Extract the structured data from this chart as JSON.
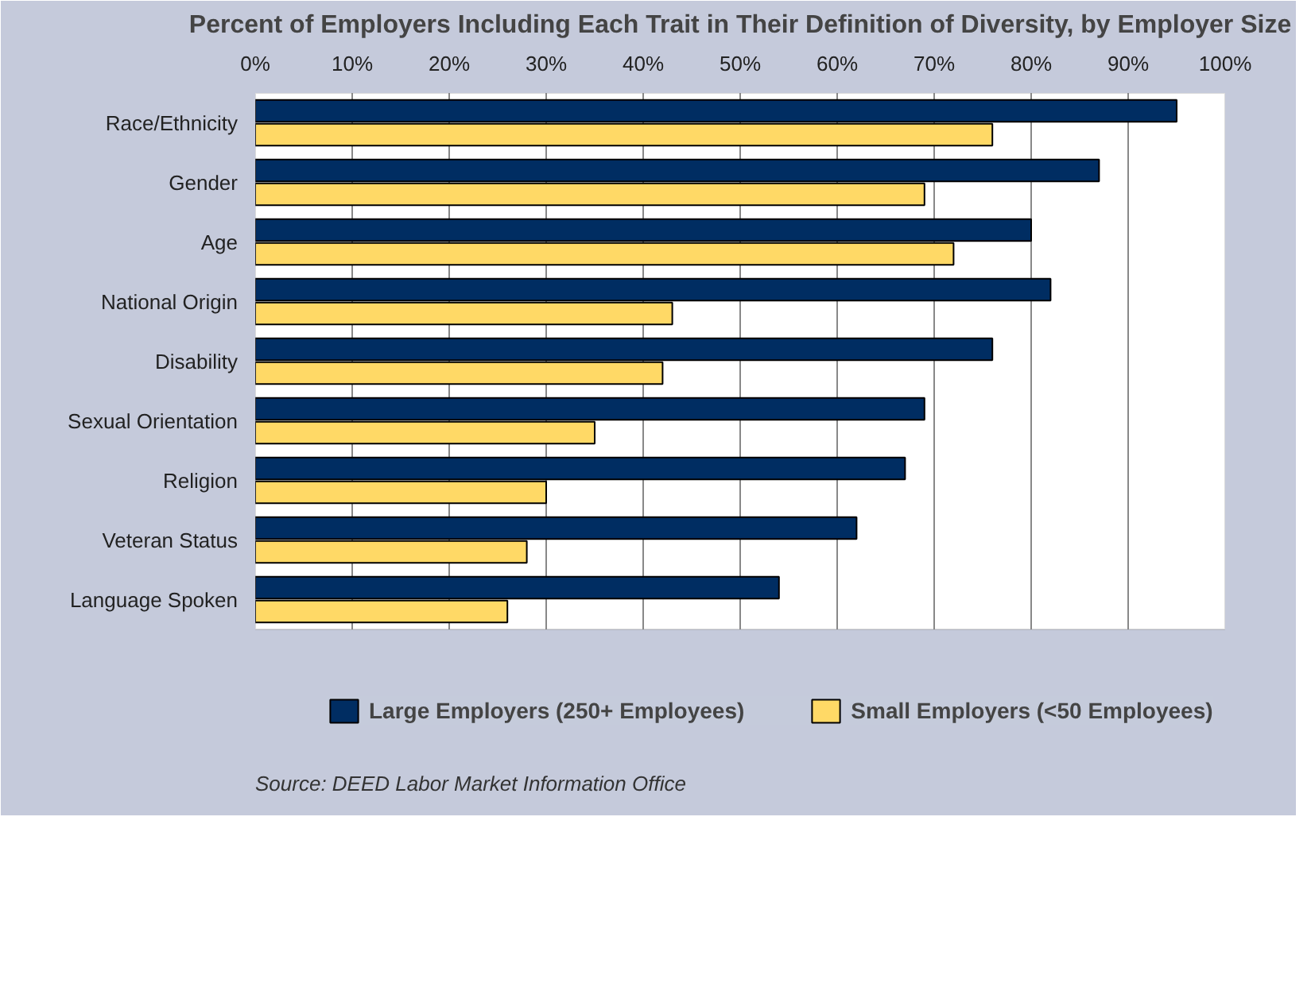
{
  "chart_data": {
    "type": "bar",
    "orientation": "horizontal",
    "title": "Percent of Employers Including Each Trait in Their Definition of Diversity, by Employer Size",
    "categories": [
      "Race/Ethnicity",
      "Gender",
      "Age",
      "National Origin",
      "Disability",
      "Sexual Orientation",
      "Religion",
      "Veteran Status",
      "Language Spoken"
    ],
    "series": [
      {
        "name": "Large Employers (250+ Employees)",
        "color": "#002d62",
        "values": [
          95,
          87,
          80,
          82,
          76,
          69,
          67,
          62,
          54
        ]
      },
      {
        "name": "Small Employers (<50 Employees)",
        "color": "#ffd966",
        "values": [
          76,
          69,
          72,
          43,
          42,
          35,
          30,
          28,
          26
        ]
      }
    ],
    "xlim": [
      0,
      100
    ],
    "xticks": [
      {
        "value": 0,
        "label": "0%"
      },
      {
        "value": 10,
        "label": "10%"
      },
      {
        "value": 20,
        "label": "20%"
      },
      {
        "value": 30,
        "label": "30%"
      },
      {
        "value": 40,
        "label": "40%"
      },
      {
        "value": 50,
        "label": "50%"
      },
      {
        "value": 60,
        "label": "60%"
      },
      {
        "value": 70,
        "label": "70%"
      },
      {
        "value": 80,
        "label": "80%"
      },
      {
        "value": 90,
        "label": "90%"
      },
      {
        "value": 100,
        "label": "100%"
      }
    ],
    "grid": "x",
    "legend": "bottom",
    "annotations": [
      "Source: DEED Labor Market Information Office"
    ]
  }
}
